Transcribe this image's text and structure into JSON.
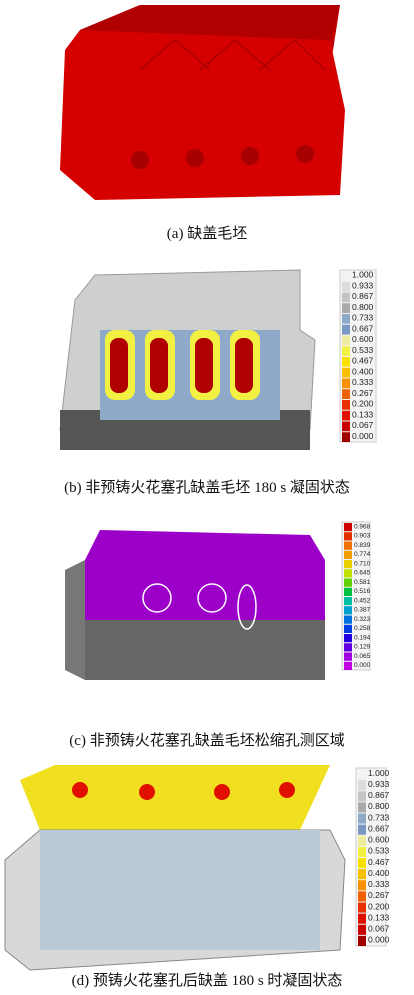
{
  "panels": [
    {
      "caption": "(a)  缺盖毛坯"
    },
    {
      "caption": "(b)  非预铸火花塞孔缺盖毛坯 180 s 凝固状态",
      "legend": [
        {
          "label": "1.000",
          "color": "#f2f2f2"
        },
        {
          "label": "0.933",
          "color": "#dcdcdc"
        },
        {
          "label": "0.867",
          "color": "#c4c4c4"
        },
        {
          "label": "0.800",
          "color": "#aaaaaa"
        },
        {
          "label": "0.733",
          "color": "#8fa9c9"
        },
        {
          "label": "0.667",
          "color": "#7a98c4"
        },
        {
          "label": "0.600",
          "color": "#ecec9c"
        },
        {
          "label": "0.533",
          "color": "#f2f040"
        },
        {
          "label": "0.467",
          "color": "#f8e000"
        },
        {
          "label": "0.400",
          "color": "#f8c000"
        },
        {
          "label": "0.333",
          "color": "#f89000"
        },
        {
          "label": "0.267",
          "color": "#f06000"
        },
        {
          "label": "0.200",
          "color": "#e83000"
        },
        {
          "label": "0.133",
          "color": "#e01000"
        },
        {
          "label": "0.067",
          "color": "#c80000"
        },
        {
          "label": "0.000",
          "color": "#a00000"
        }
      ]
    },
    {
      "caption": "(c)  非预铸火花塞孔缺盖毛坯松缩孔测区域",
      "legend": [
        {
          "label": "0.968",
          "color": "#d00000"
        },
        {
          "label": "0.903",
          "color": "#e03000"
        },
        {
          "label": "0.839",
          "color": "#f07000"
        },
        {
          "label": "0.774",
          "color": "#f0a000"
        },
        {
          "label": "0.710",
          "color": "#e8d000"
        },
        {
          "label": "0.645",
          "color": "#c0e000"
        },
        {
          "label": "0.581",
          "color": "#60d000"
        },
        {
          "label": "0.516",
          "color": "#00c040"
        },
        {
          "label": "0.452",
          "color": "#00c0a0"
        },
        {
          "label": "0.387",
          "color": "#00a0d0"
        },
        {
          "label": "0.323",
          "color": "#0070e0"
        },
        {
          "label": "0.258",
          "color": "#0040e0"
        },
        {
          "label": "0.194",
          "color": "#2000e0"
        },
        {
          "label": "0.129",
          "color": "#6000e0"
        },
        {
          "label": "0.065",
          "color": "#a000e0"
        },
        {
          "label": "0.000",
          "color": "#c000e0"
        }
      ]
    },
    {
      "caption": "(d)  预铸火花塞孔后缺盖 180 s 时凝固状态",
      "legend": [
        {
          "label": "1.000",
          "color": "#f2f2f2"
        },
        {
          "label": "0.933",
          "color": "#dcdcdc"
        },
        {
          "label": "0.867",
          "color": "#c4c4c4"
        },
        {
          "label": "0.800",
          "color": "#aaaaaa"
        },
        {
          "label": "0.733",
          "color": "#8fa9c9"
        },
        {
          "label": "0.667",
          "color": "#7a98c4"
        },
        {
          "label": "0.600",
          "color": "#ecec9c"
        },
        {
          "label": "0.533",
          "color": "#f2f040"
        },
        {
          "label": "0.467",
          "color": "#f8e000"
        },
        {
          "label": "0.400",
          "color": "#f8c000"
        },
        {
          "label": "0.333",
          "color": "#f89000"
        },
        {
          "label": "0.267",
          "color": "#f06000"
        },
        {
          "label": "0.200",
          "color": "#e83000"
        },
        {
          "label": "0.133",
          "color": "#e01000"
        },
        {
          "label": "0.067",
          "color": "#c80000"
        },
        {
          "label": "0.000",
          "color": "#a00000"
        }
      ]
    }
  ]
}
